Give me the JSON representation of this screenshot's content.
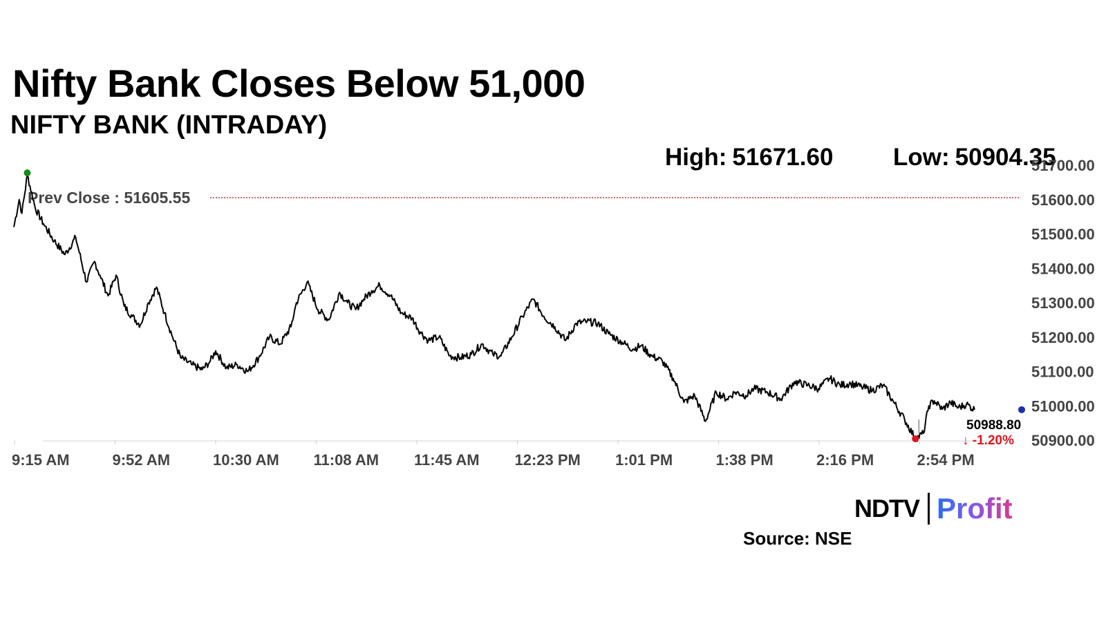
{
  "header": {
    "title": "Nifty Bank Closes Below 51,000",
    "subtitle": "NIFTY BANK (INTRADAY)"
  },
  "stats": {
    "high_label": "High:",
    "high_value": "51671.60",
    "low_label": "Low:",
    "low_value": "50904.35"
  },
  "footer": {
    "brand_ndtv": "NDTV",
    "brand_profit": "Profit",
    "source": "Source: NSE"
  },
  "colors": {
    "line": "#000000",
    "prev_close_line": "#cc0000",
    "high_marker": "#1a8a1a",
    "low_marker": "#e0141e",
    "last_marker": "#1f2fb0",
    "change_text": "#e0141e",
    "axis_text": "#444444"
  },
  "chart_data": {
    "type": "line",
    "title": "NIFTY BANK (INTRADAY)",
    "xlabel": "",
    "ylabel": "",
    "x_ticks": [
      "9:15 AM",
      "9:52 AM",
      "10:30 AM",
      "11:08 AM",
      "11:45 AM",
      "12:23 PM",
      "1:01 PM",
      "1:38 PM",
      "2:16 PM",
      "2:54 PM"
    ],
    "y_ticks": [
      "50900.00",
      "51000.00",
      "51100.00",
      "51200.00",
      "51300.00",
      "51400.00",
      "51500.00",
      "51600.00",
      "51700.00"
    ],
    "ylim": [
      50900,
      51700
    ],
    "xlim": [
      "9:15",
      "15:30"
    ],
    "grid": false,
    "series": [
      {
        "x": [
          "9:15",
          "9:17",
          "9:18",
          "9:20",
          "9:23",
          "9:26",
          "9:30",
          "9:34",
          "9:38",
          "9:42",
          "9:45",
          "9:47",
          "9:50",
          "9:53",
          "9:56",
          "9:59",
          "10:02",
          "10:05",
          "10:08",
          "10:11",
          "10:14",
          "10:17",
          "10:21",
          "10:25",
          "10:28",
          "10:30",
          "10:34",
          "10:38",
          "10:42",
          "10:46",
          "10:50",
          "10:54",
          "10:58",
          "11:00",
          "11:04",
          "11:08",
          "11:12",
          "11:16",
          "11:19",
          "11:22",
          "11:25",
          "11:28",
          "11:31",
          "11:35",
          "11:39",
          "11:43",
          "11:46",
          "11:49",
          "11:53",
          "11:57",
          "12:01",
          "12:05",
          "12:09",
          "12:13",
          "12:16",
          "12:20",
          "12:24",
          "12:28",
          "12:32",
          "12:36",
          "12:40",
          "12:44",
          "12:48",
          "12:52",
          "12:56",
          "13:01",
          "13:05",
          "13:08",
          "13:12",
          "13:16",
          "13:20",
          "13:24",
          "13:28",
          "13:32",
          "13:36",
          "13:40",
          "13:43",
          "13:47",
          "13:50",
          "13:55",
          "14:00",
          "14:05",
          "14:10",
          "14:14",
          "14:18",
          "14:22",
          "14:26",
          "14:30",
          "14:34",
          "14:38",
          "14:42",
          "14:46",
          "14:50",
          "14:53",
          "14:55",
          "14:57",
          "15:00",
          "15:03",
          "15:06",
          "15:09",
          "15:12"
        ],
        "y": [
          51520,
          51600,
          51560,
          51671.6,
          51575,
          51530,
          51480,
          51440,
          51490,
          51360,
          51420,
          51380,
          51320,
          51380,
          51290,
          51260,
          51235,
          51300,
          51345,
          51270,
          51200,
          51140,
          51120,
          51105,
          51130,
          51160,
          51110,
          51120,
          51100,
          51140,
          51200,
          51180,
          51230,
          51300,
          51360,
          51280,
          51250,
          51330,
          51300,
          51280,
          51310,
          51335,
          51350,
          51320,
          51270,
          51255,
          51215,
          51190,
          51200,
          51145,
          51140,
          51150,
          51180,
          51150,
          51145,
          51200,
          51260,
          51310,
          51260,
          51230,
          51190,
          51240,
          51245,
          51240,
          51210,
          51185,
          51165,
          51175,
          51145,
          51130,
          51080,
          51010,
          51030,
          50955,
          51040,
          51020,
          51040,
          51030,
          51050,
          51040,
          51020,
          51070,
          51060,
          51050,
          51080,
          51060,
          51065,
          51055,
          51045,
          51060,
          51010,
          50960,
          50904.35,
          50920,
          51000,
          51015,
          50990,
          51010,
          50995,
          51005,
          50988.8
        ]
      }
    ],
    "prev_close": 51605.55,
    "prev_close_label": "Prev Close : 51605.55",
    "last_value_label": "50988.80",
    "change_label": "-1.20%",
    "change_arrow": "↓"
  }
}
